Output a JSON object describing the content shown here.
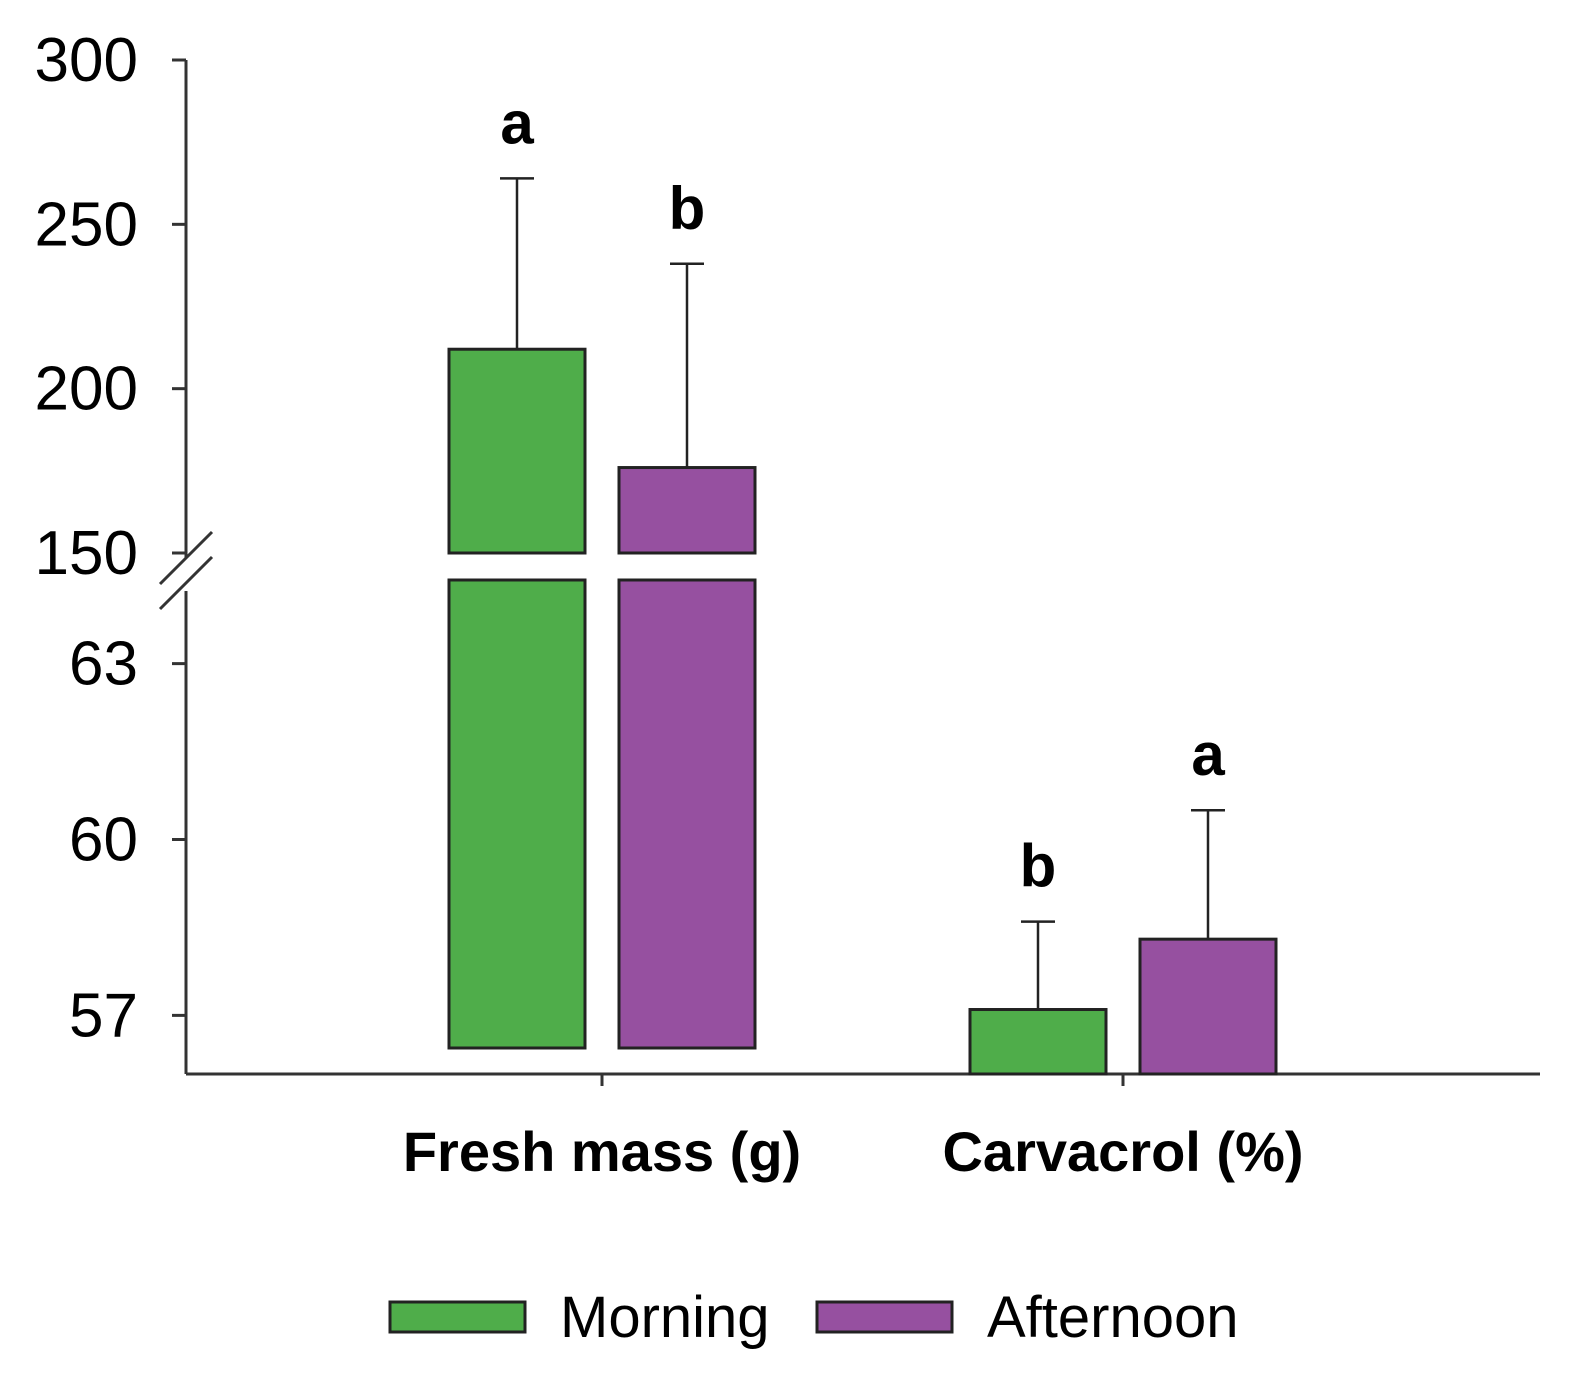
{
  "chart_data": {
    "type": "bar",
    "title": "",
    "xlabel": "",
    "ylabel": "",
    "broken_axis": {
      "upper_segment": {
        "ylim": [
          150,
          300
        ],
        "ticks": [
          "150",
          "200",
          "250",
          "300"
        ]
      },
      "lower_segment": {
        "ylim": [
          56,
          64
        ],
        "ticks": [
          "57",
          "60",
          "63"
        ]
      }
    },
    "categories": [
      "Fresh mass (g)",
      "Carvacrol (%)"
    ],
    "series": [
      {
        "name": "Morning",
        "color": "#4fad4a",
        "values": [
          212,
          57.1
        ],
        "error_upper": [
          264,
          58.6
        ],
        "labels": [
          "a",
          "b"
        ]
      },
      {
        "name": "Afternoon",
        "color": "#9650a0",
        "values": [
          176,
          58.3
        ],
        "error_upper": [
          238,
          60.5
        ],
        "labels": [
          "b",
          "a"
        ]
      }
    ],
    "legend": {
      "position": "bottom-center",
      "entries": [
        "Morning",
        "Afternoon"
      ]
    }
  }
}
